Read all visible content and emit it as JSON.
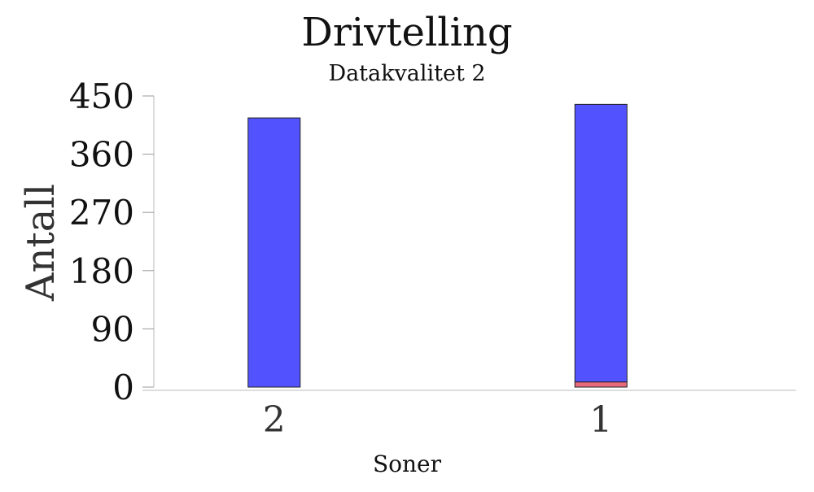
{
  "chart_data": {
    "type": "bar",
    "stacked": true,
    "title": "Drivtelling",
    "subtitle": "Datakvalitet 2",
    "xlabel": "Soner",
    "ylabel": "Antall",
    "categories": [
      "2",
      "1"
    ],
    "series": [
      {
        "values": [
          0,
          8
        ],
        "color": "#e8687c"
      },
      {
        "values": [
          416,
          429
        ],
        "color": "#5252ff"
      }
    ],
    "ylim": [
      0,
      450
    ],
    "yticks": [
      0,
      90,
      180,
      270,
      360,
      450
    ],
    "grid": false,
    "legend": "none"
  }
}
